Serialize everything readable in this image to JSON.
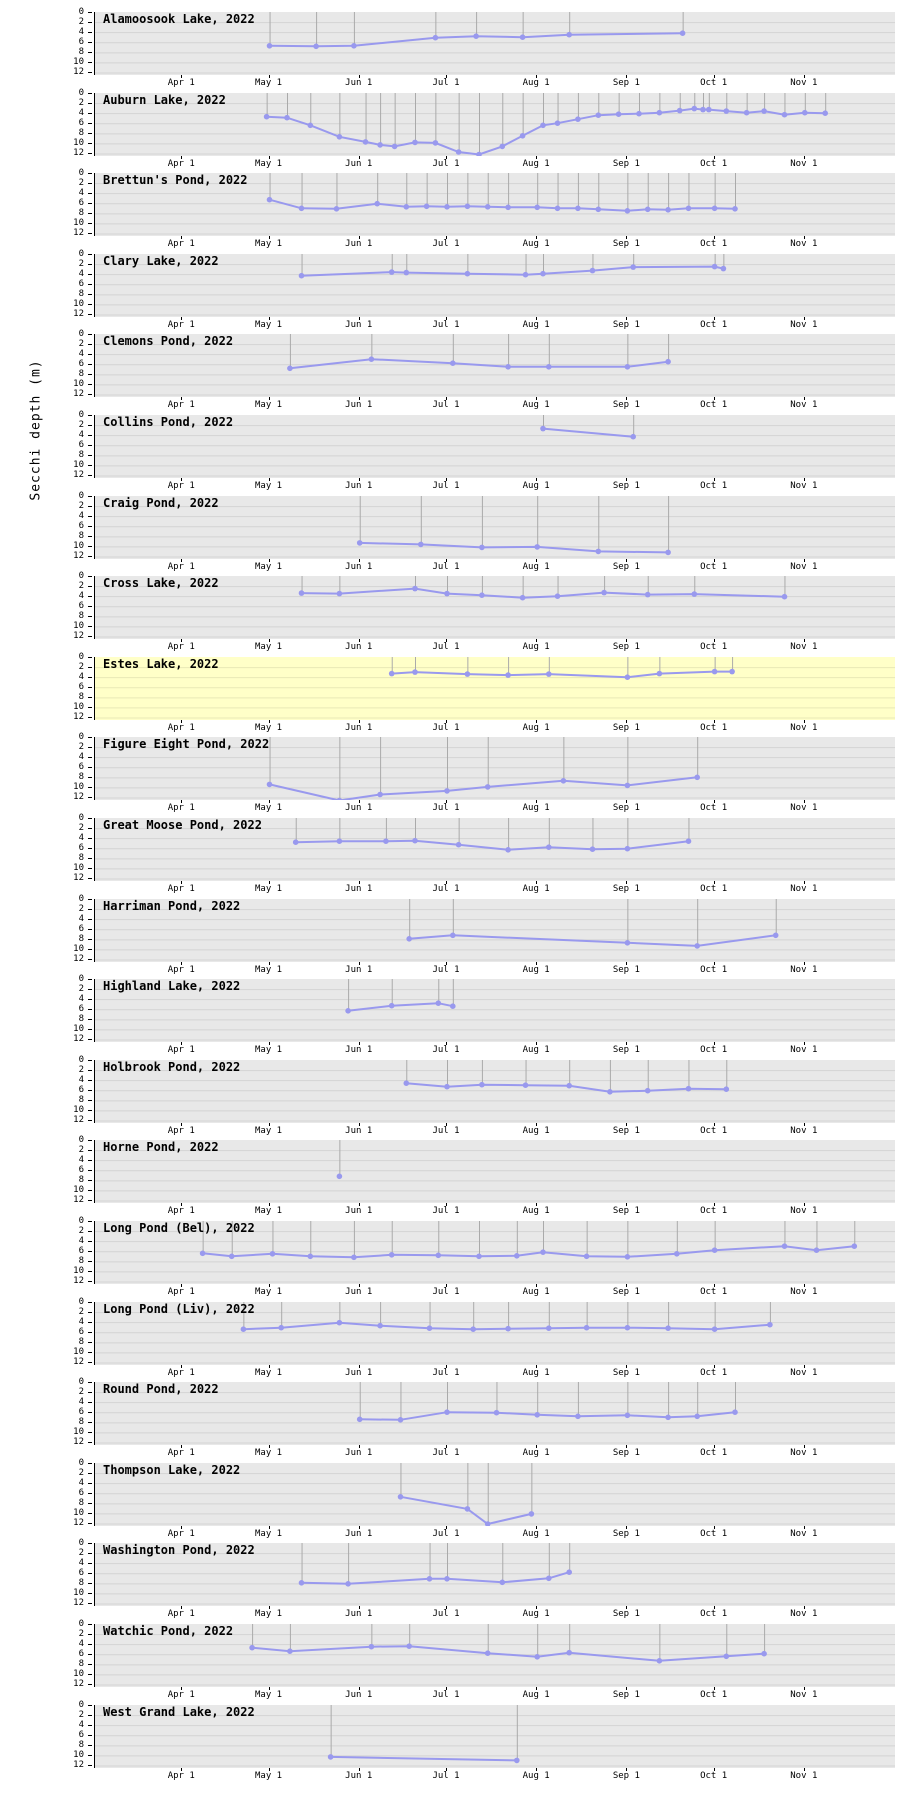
{
  "chart_data": {
    "type": "line",
    "ylabel": "Secchi depth (m)",
    "year": "2022",
    "ylim": [
      0,
      12.5
    ],
    "y_ticks": [
      0,
      2,
      4,
      6,
      8,
      10,
      12
    ],
    "x_range": [
      "2022-03-02",
      "2022-12-02"
    ],
    "x_ticks": [
      {
        "label": "Apr 1",
        "date": "2022-04-01"
      },
      {
        "label": "May 1",
        "date": "2022-05-01"
      },
      {
        "label": "Jun 1",
        "date": "2022-06-01"
      },
      {
        "label": "Jul 1",
        "date": "2022-07-01"
      },
      {
        "label": "Aug 1",
        "date": "2022-08-01"
      },
      {
        "label": "Sep 1",
        "date": "2022-09-01"
      },
      {
        "label": "Oct 1",
        "date": "2022-10-01"
      },
      {
        "label": "Nov 1",
        "date": "2022-11-01"
      }
    ],
    "colors": {
      "panel_bg": "#e8e8e8",
      "highlight_bg": "#ffffc8",
      "line": "#9999ee",
      "marker": "#9999ee",
      "stem": "#aaaaaa",
      "grid": "#d4d4c4",
      "axis": "#000000"
    },
    "panels": [
      {
        "title": "Alamoosook Lake, 2022",
        "highlighted": false,
        "points": [
          [
            "2022-05-01",
            6.7
          ],
          [
            "2022-05-17",
            6.8
          ],
          [
            "2022-05-30",
            6.7
          ],
          [
            "2022-06-27",
            5.1
          ],
          [
            "2022-07-11",
            4.8
          ],
          [
            "2022-07-27",
            5.0
          ],
          [
            "2022-08-12",
            4.5
          ],
          [
            "2022-09-20",
            4.2
          ]
        ]
      },
      {
        "title": "Auburn Lake, 2022",
        "highlighted": false,
        "points": [
          [
            "2022-04-30",
            4.7
          ],
          [
            "2022-05-07",
            4.9
          ],
          [
            "2022-05-15",
            6.4
          ],
          [
            "2022-05-25",
            8.7
          ],
          [
            "2022-06-03",
            9.7
          ],
          [
            "2022-06-08",
            10.3
          ],
          [
            "2022-06-13",
            10.6
          ],
          [
            "2022-06-20",
            9.8
          ],
          [
            "2022-06-27",
            9.9
          ],
          [
            "2022-07-05",
            11.7
          ],
          [
            "2022-07-12",
            12.2
          ],
          [
            "2022-07-20",
            10.6
          ],
          [
            "2022-07-27",
            8.5
          ],
          [
            "2022-08-03",
            6.4
          ],
          [
            "2022-08-08",
            6.0
          ],
          [
            "2022-08-15",
            5.2
          ],
          [
            "2022-08-22",
            4.4
          ],
          [
            "2022-08-29",
            4.2
          ],
          [
            "2022-09-05",
            4.1
          ],
          [
            "2022-09-12",
            3.9
          ],
          [
            "2022-09-19",
            3.5
          ],
          [
            "2022-09-24",
            3.1
          ],
          [
            "2022-09-27",
            3.3
          ],
          [
            "2022-09-29",
            3.3
          ],
          [
            "2022-10-05",
            3.6
          ],
          [
            "2022-10-12",
            3.9
          ],
          [
            "2022-10-18",
            3.6
          ],
          [
            "2022-10-25",
            4.3
          ],
          [
            "2022-11-01",
            3.9
          ],
          [
            "2022-11-08",
            4.0
          ]
        ]
      },
      {
        "title": "Brettun's Pond, 2022",
        "highlighted": false,
        "points": [
          [
            "2022-05-01",
            5.3
          ],
          [
            "2022-05-12",
            7.0
          ],
          [
            "2022-05-24",
            7.1
          ],
          [
            "2022-06-07",
            6.1
          ],
          [
            "2022-06-17",
            6.7
          ],
          [
            "2022-06-24",
            6.6
          ],
          [
            "2022-07-01",
            6.7
          ],
          [
            "2022-07-08",
            6.6
          ],
          [
            "2022-07-15",
            6.7
          ],
          [
            "2022-07-22",
            6.8
          ],
          [
            "2022-08-01",
            6.8
          ],
          [
            "2022-08-08",
            7.0
          ],
          [
            "2022-08-15",
            7.0
          ],
          [
            "2022-08-22",
            7.2
          ],
          [
            "2022-09-01",
            7.5
          ],
          [
            "2022-09-08",
            7.2
          ],
          [
            "2022-09-15",
            7.3
          ],
          [
            "2022-09-22",
            7.0
          ],
          [
            "2022-10-01",
            7.0
          ],
          [
            "2022-10-08",
            7.1
          ]
        ]
      },
      {
        "title": "Clary Lake, 2022",
        "highlighted": false,
        "points": [
          [
            "2022-05-12",
            4.3
          ],
          [
            "2022-06-12",
            3.6
          ],
          [
            "2022-06-17",
            3.7
          ],
          [
            "2022-07-08",
            3.9
          ],
          [
            "2022-07-28",
            4.1
          ],
          [
            "2022-08-03",
            3.9
          ],
          [
            "2022-08-20",
            3.3
          ],
          [
            "2022-09-03",
            2.6
          ],
          [
            "2022-10-01",
            2.5
          ],
          [
            "2022-10-04",
            2.9
          ]
        ]
      },
      {
        "title": "Clemons Pond, 2022",
        "highlighted": false,
        "points": [
          [
            "2022-05-08",
            6.8
          ],
          [
            "2022-06-05",
            5.0
          ],
          [
            "2022-07-03",
            5.8
          ],
          [
            "2022-07-22",
            6.5
          ],
          [
            "2022-08-05",
            6.5
          ],
          [
            "2022-09-01",
            6.5
          ],
          [
            "2022-09-15",
            5.5
          ]
        ]
      },
      {
        "title": "Collins Pond, 2022",
        "highlighted": false,
        "points": [
          [
            "2022-08-03",
            2.7
          ],
          [
            "2022-09-03",
            4.3
          ]
        ]
      },
      {
        "title": "Craig Pond, 2022",
        "highlighted": false,
        "points": [
          [
            "2022-06-01",
            9.3
          ],
          [
            "2022-06-22",
            9.6
          ],
          [
            "2022-07-13",
            10.2
          ],
          [
            "2022-08-01",
            10.1
          ],
          [
            "2022-08-22",
            11.0
          ],
          [
            "2022-09-15",
            11.2
          ]
        ]
      },
      {
        "title": "Cross Lake, 2022",
        "highlighted": false,
        "points": [
          [
            "2022-05-12",
            3.4
          ],
          [
            "2022-05-25",
            3.5
          ],
          [
            "2022-06-20",
            2.5
          ],
          [
            "2022-07-01",
            3.5
          ],
          [
            "2022-07-13",
            3.8
          ],
          [
            "2022-07-27",
            4.3
          ],
          [
            "2022-08-08",
            4.0
          ],
          [
            "2022-08-24",
            3.3
          ],
          [
            "2022-09-08",
            3.7
          ],
          [
            "2022-09-24",
            3.6
          ],
          [
            "2022-10-25",
            4.1
          ]
        ]
      },
      {
        "title": "Estes Lake, 2022",
        "highlighted": true,
        "points": [
          [
            "2022-06-12",
            3.3
          ],
          [
            "2022-06-20",
            3.0
          ],
          [
            "2022-07-08",
            3.4
          ],
          [
            "2022-07-22",
            3.6
          ],
          [
            "2022-08-05",
            3.4
          ],
          [
            "2022-09-01",
            4.0
          ],
          [
            "2022-09-12",
            3.3
          ],
          [
            "2022-10-01",
            2.9
          ],
          [
            "2022-10-07",
            2.9
          ]
        ]
      },
      {
        "title": "Figure Eight Pond, 2022",
        "highlighted": false,
        "points": [
          [
            "2022-05-01",
            9.4
          ],
          [
            "2022-05-25",
            12.6
          ],
          [
            "2022-06-08",
            11.4
          ],
          [
            "2022-07-01",
            10.7
          ],
          [
            "2022-07-15",
            9.9
          ],
          [
            "2022-08-10",
            8.7
          ],
          [
            "2022-09-01",
            9.6
          ],
          [
            "2022-09-25",
            8.0
          ]
        ]
      },
      {
        "title": "Great Moose Pond, 2022",
        "highlighted": false,
        "points": [
          [
            "2022-05-10",
            4.8
          ],
          [
            "2022-05-25",
            4.6
          ],
          [
            "2022-06-10",
            4.6
          ],
          [
            "2022-06-20",
            4.5
          ],
          [
            "2022-07-05",
            5.3
          ],
          [
            "2022-07-22",
            6.3
          ],
          [
            "2022-08-05",
            5.8
          ],
          [
            "2022-08-20",
            6.2
          ],
          [
            "2022-09-01",
            6.1
          ],
          [
            "2022-09-22",
            4.6
          ]
        ]
      },
      {
        "title": "Harriman Pond, 2022",
        "highlighted": false,
        "points": [
          [
            "2022-06-18",
            7.9
          ],
          [
            "2022-07-03",
            7.2
          ],
          [
            "2022-09-01",
            8.7
          ],
          [
            "2022-09-25",
            9.3
          ],
          [
            "2022-10-22",
            7.2
          ]
        ]
      },
      {
        "title": "Highland Lake, 2022",
        "highlighted": false,
        "points": [
          [
            "2022-05-28",
            6.3
          ],
          [
            "2022-06-12",
            5.3
          ],
          [
            "2022-06-28",
            4.8
          ],
          [
            "2022-07-03",
            5.4
          ]
        ]
      },
      {
        "title": "Holbrook Pond, 2022",
        "highlighted": false,
        "points": [
          [
            "2022-06-17",
            4.6
          ],
          [
            "2022-07-01",
            5.3
          ],
          [
            "2022-07-13",
            4.9
          ],
          [
            "2022-07-28",
            5.0
          ],
          [
            "2022-08-12",
            5.1
          ],
          [
            "2022-08-26",
            6.3
          ],
          [
            "2022-09-08",
            6.1
          ],
          [
            "2022-09-22",
            5.7
          ],
          [
            "2022-10-05",
            5.8
          ]
        ]
      },
      {
        "title": "Horne Pond, 2022",
        "highlighted": false,
        "points": [
          [
            "2022-05-25",
            7.2
          ]
        ]
      },
      {
        "title": "Long Pond (Bel), 2022",
        "highlighted": false,
        "points": [
          [
            "2022-04-08",
            6.4
          ],
          [
            "2022-04-18",
            7.0
          ],
          [
            "2022-05-02",
            6.5
          ],
          [
            "2022-05-15",
            7.0
          ],
          [
            "2022-05-30",
            7.2
          ],
          [
            "2022-06-12",
            6.7
          ],
          [
            "2022-06-28",
            6.8
          ],
          [
            "2022-07-12",
            7.0
          ],
          [
            "2022-07-25",
            6.9
          ],
          [
            "2022-08-03",
            6.2
          ],
          [
            "2022-08-18",
            7.0
          ],
          [
            "2022-09-01",
            7.1
          ],
          [
            "2022-09-18",
            6.5
          ],
          [
            "2022-10-01",
            5.8
          ],
          [
            "2022-10-25",
            5.0
          ],
          [
            "2022-11-05",
            5.8
          ],
          [
            "2022-11-18",
            5.0
          ]
        ]
      },
      {
        "title": "Long Pond (Liv), 2022",
        "highlighted": false,
        "points": [
          [
            "2022-04-22",
            5.4
          ],
          [
            "2022-05-05",
            5.1
          ],
          [
            "2022-05-25",
            4.1
          ],
          [
            "2022-06-08",
            4.7
          ],
          [
            "2022-06-25",
            5.2
          ],
          [
            "2022-07-10",
            5.4
          ],
          [
            "2022-07-22",
            5.3
          ],
          [
            "2022-08-05",
            5.2
          ],
          [
            "2022-08-18",
            5.1
          ],
          [
            "2022-09-01",
            5.1
          ],
          [
            "2022-09-15",
            5.2
          ],
          [
            "2022-10-01",
            5.4
          ],
          [
            "2022-10-20",
            4.5
          ]
        ]
      },
      {
        "title": "Round Pond, 2022",
        "highlighted": false,
        "points": [
          [
            "2022-06-01",
            7.4
          ],
          [
            "2022-06-15",
            7.5
          ],
          [
            "2022-07-01",
            6.0
          ],
          [
            "2022-07-18",
            6.1
          ],
          [
            "2022-08-01",
            6.5
          ],
          [
            "2022-08-15",
            6.8
          ],
          [
            "2022-09-01",
            6.6
          ],
          [
            "2022-09-15",
            7.0
          ],
          [
            "2022-09-25",
            6.8
          ],
          [
            "2022-10-08",
            6.0
          ]
        ]
      },
      {
        "title": "Thompson Lake, 2022",
        "highlighted": false,
        "points": [
          [
            "2022-06-15",
            6.7
          ],
          [
            "2022-07-08",
            9.1
          ],
          [
            "2022-07-15",
            12.1
          ],
          [
            "2022-07-30",
            10.1
          ]
        ]
      },
      {
        "title": "Washington Pond, 2022",
        "highlighted": false,
        "points": [
          [
            "2022-05-12",
            7.9
          ],
          [
            "2022-05-28",
            8.1
          ],
          [
            "2022-06-25",
            7.1
          ],
          [
            "2022-07-01",
            7.1
          ],
          [
            "2022-07-20",
            7.8
          ],
          [
            "2022-08-05",
            7.0
          ],
          [
            "2022-08-12",
            5.8
          ]
        ]
      },
      {
        "title": "Watchic Pond, 2022",
        "highlighted": false,
        "points": [
          [
            "2022-04-25",
            4.7
          ],
          [
            "2022-05-08",
            5.4
          ],
          [
            "2022-06-05",
            4.5
          ],
          [
            "2022-06-18",
            4.4
          ],
          [
            "2022-07-15",
            5.8
          ],
          [
            "2022-08-01",
            6.5
          ],
          [
            "2022-08-12",
            5.7
          ],
          [
            "2022-09-12",
            7.3
          ],
          [
            "2022-10-05",
            6.4
          ],
          [
            "2022-10-18",
            5.9
          ]
        ]
      },
      {
        "title": "West Grand Lake, 2022",
        "highlighted": false,
        "points": [
          [
            "2022-05-22",
            10.3
          ],
          [
            "2022-07-25",
            11.0
          ]
        ]
      }
    ]
  }
}
